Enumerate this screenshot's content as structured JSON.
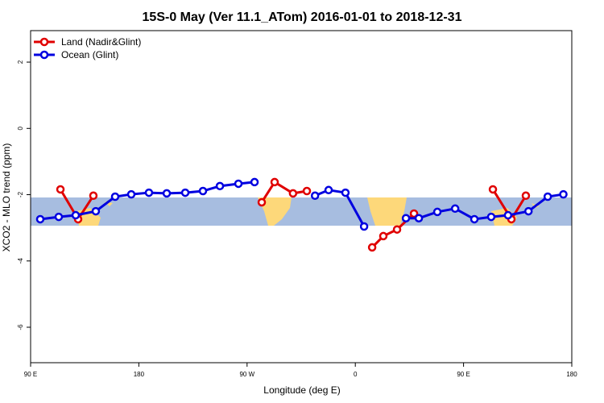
{
  "chart_data": {
    "type": "line",
    "title": "15S-0 May (Ver 11.1_ATom)   2016-01-01 to 2018-12-31",
    "x_label": "Longitude (deg E)",
    "y_label": "XCO2 - MLO trend (ppm)",
    "xlim": [
      90,
      540
    ],
    "xticks": [
      {
        "value": 90,
        "label": "90 E"
      },
      180,
      {
        "value": 270,
        "label": "90 W"
      },
      {
        "value": 360,
        "label": "0"
      },
      {
        "value": 450,
        "label": "90 E"
      },
      {
        "value": 540,
        "label": "180"
      }
    ],
    "ylim": [
      -7.07,
      2.95
    ],
    "yticks": [
      -6,
      -4,
      -2,
      0,
      2
    ],
    "legend": "top-left",
    "series": [
      {
        "name": "Land (Nadir&Glint)",
        "color": "#e00000",
        "x": [
          114.8,
          129.5,
          142.2,
          null,
          282.2,
          292.9,
          308.2,
          319.7,
          null,
          374,
          383.3,
          394.7,
          408.8,
          null,
          474.4,
          489.8,
          501.8
        ],
        "values": [
          -1.84,
          -2.74,
          -2.03,
          null,
          -2.23,
          -1.62,
          -1.96,
          -1.89,
          null,
          -3.59,
          -3.25,
          -3.05,
          -2.57,
          null,
          -1.84,
          -2.74,
          -2.03
        ]
      },
      {
        "name": "Ocean (Glint)",
        "color": "#0000e0",
        "x": [
          98,
          113.4,
          127.5,
          144.2,
          160.3,
          173.7,
          188.4,
          203.2,
          218.6,
          233.3,
          247.4,
          262.8,
          276.2,
          null,
          326.5,
          337.8,
          351.8,
          367.3,
          null,
          402.1,
          412.8,
          428.2,
          443,
          459,
          473,
          487,
          504,
          520,
          533
        ],
        "values": [
          -2.74,
          -2.67,
          -2.62,
          -2.5,
          -2.06,
          -1.99,
          -1.94,
          -1.96,
          -1.94,
          -1.89,
          -1.74,
          -1.67,
          -1.62,
          null,
          -2.03,
          -1.86,
          -1.94,
          -2.96,
          null,
          -2.71,
          -2.71,
          -2.52,
          -2.42,
          -2.74,
          -2.67,
          -2.62,
          -2.5,
          -2.06,
          -1.99
        ]
      }
    ]
  }
}
